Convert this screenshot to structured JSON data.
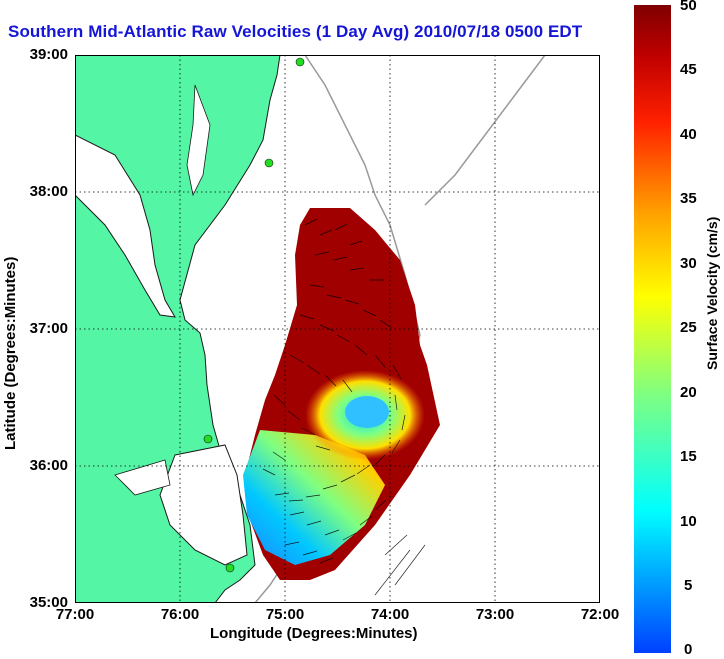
{
  "title": "Southern Mid-Atlantic Raw Velocities (1 Day Avg) 2010/07/18 0500 EDT",
  "xlabel": "Longitude (Degrees:Minutes)",
  "ylabel": "Latitude (Degrees:Minutes)",
  "x_ticks": [
    "77:00",
    "76:00",
    "75:00",
    "74:00",
    "73:00",
    "72:00"
  ],
  "y_ticks": [
    "39:00",
    "38:00",
    "37:00",
    "36:00",
    "35:00"
  ],
  "colorbar": {
    "label": "Surface Velocity (cm/s)",
    "ticks": [
      "50",
      "45",
      "40",
      "35",
      "30",
      "25",
      "20",
      "15",
      "10",
      "5",
      "0"
    ],
    "range": [
      0,
      50
    ]
  },
  "colors": {
    "land": "#55f5a6",
    "coast": "#1a1a1a",
    "bathymetry": "#999999",
    "title": "#1515d6",
    "site_marker": "#22dd22"
  }
}
